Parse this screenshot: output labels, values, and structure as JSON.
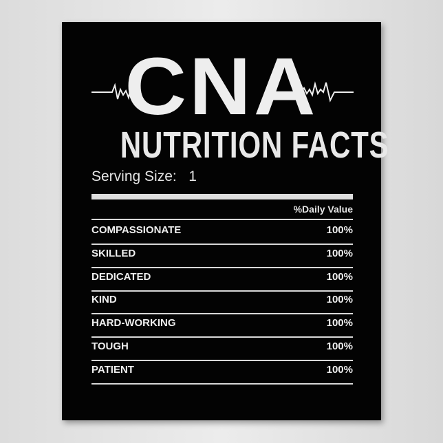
{
  "poster": {
    "title": "CNA",
    "subtitle": "NUTRITION FACTS",
    "serving_size_label": "Serving Size:",
    "serving_size_value": "1",
    "daily_value_header": "%Daily Value",
    "rows": [
      {
        "label": "COMPASSIONATE",
        "value": "100%"
      },
      {
        "label": "SKILLED",
        "value": "100%"
      },
      {
        "label": "DEDICATED",
        "value": "100%"
      },
      {
        "label": "KIND",
        "value": "100%"
      },
      {
        "label": "HARD-WORKING",
        "value": "100%"
      },
      {
        "label": "TOUGH",
        "value": "100%"
      },
      {
        "label": "PATIENT",
        "value": "100%"
      }
    ],
    "icons": [
      "heartbeat-icon",
      "heartbeat-icon"
    ],
    "colors": {
      "background": "#030303",
      "text": "#eeeeee",
      "wall": "#e4e4e4"
    }
  }
}
